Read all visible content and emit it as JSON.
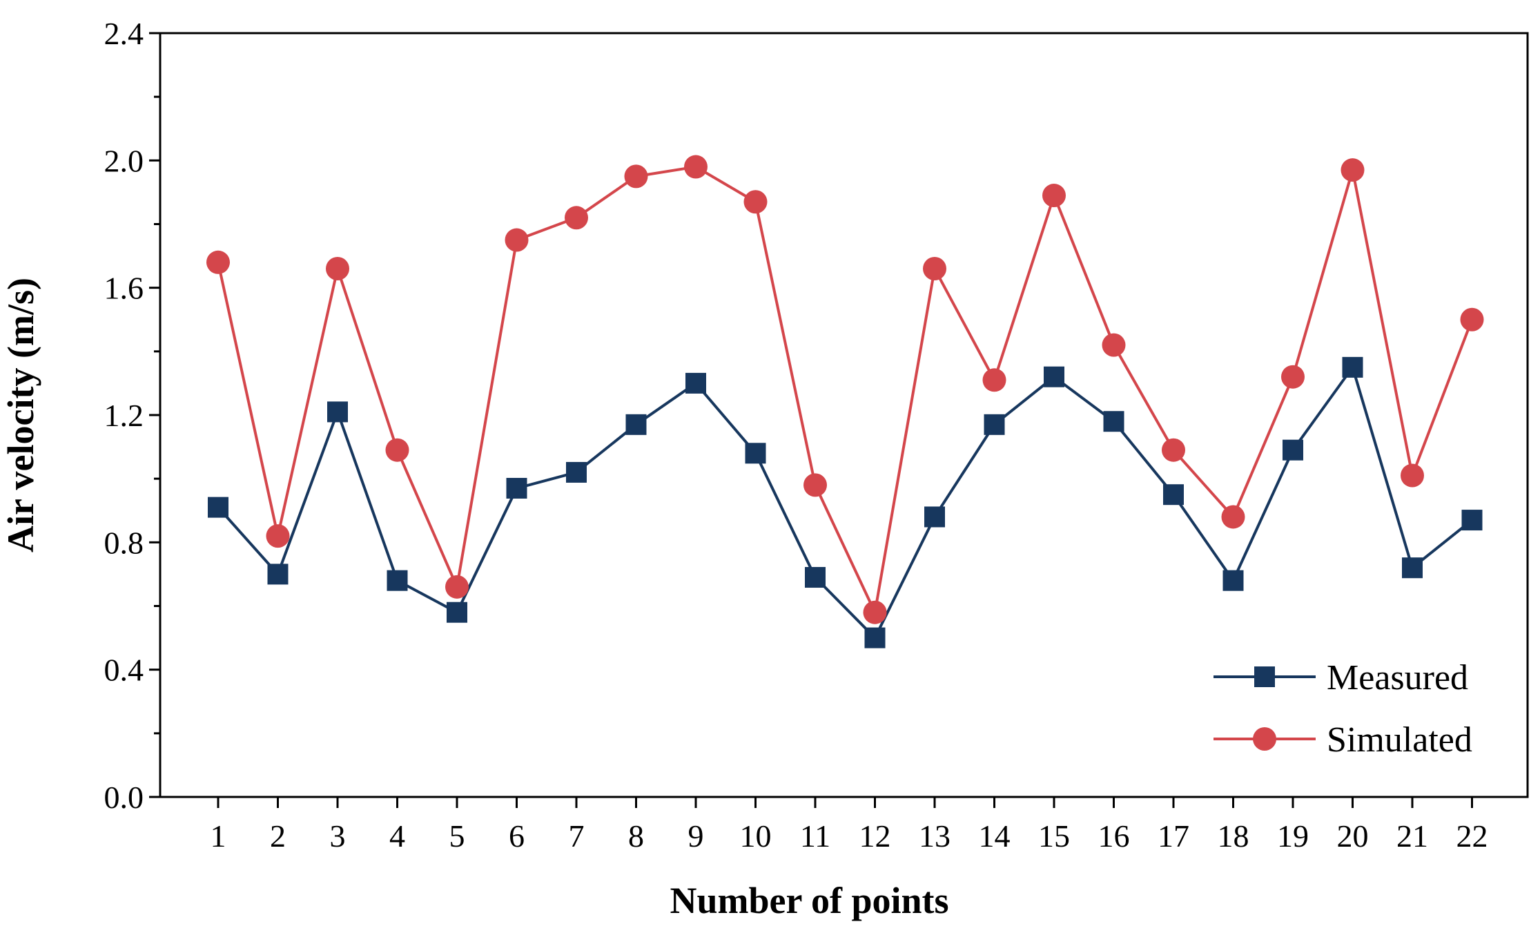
{
  "chart_data": {
    "type": "line",
    "title": "",
    "xlabel": "Number of points",
    "ylabel": "Air velocity (m/s)",
    "categories": [
      "1",
      "2",
      "3",
      "4",
      "5",
      "6",
      "7",
      "8",
      "9",
      "10",
      "11",
      "12",
      "13",
      "14",
      "15",
      "16",
      "17",
      "18",
      "19",
      "20",
      "21",
      "22"
    ],
    "ylim": [
      0,
      2.4
    ],
    "yticks": [
      "0.0",
      "0.4",
      "0.8",
      "1.2",
      "1.6",
      "2.0",
      "2.4"
    ],
    "grid": false,
    "legend_position": "bottom-right",
    "series": [
      {
        "name": "Measured",
        "marker": "square",
        "color": "#17375e",
        "values": [
          0.91,
          0.7,
          1.21,
          0.68,
          0.58,
          0.97,
          1.02,
          1.17,
          1.3,
          1.08,
          0.69,
          0.5,
          0.88,
          1.17,
          1.32,
          1.18,
          0.95,
          0.68,
          1.09,
          1.35,
          0.72,
          0.87
        ]
      },
      {
        "name": "Simulated",
        "marker": "circle",
        "color": "#d4464b",
        "values": [
          1.68,
          0.82,
          1.66,
          1.09,
          0.66,
          1.75,
          1.82,
          1.95,
          1.98,
          1.87,
          0.98,
          0.58,
          1.66,
          1.31,
          1.89,
          1.42,
          1.09,
          0.88,
          1.32,
          1.97,
          1.01,
          1.5
        ]
      }
    ]
  }
}
